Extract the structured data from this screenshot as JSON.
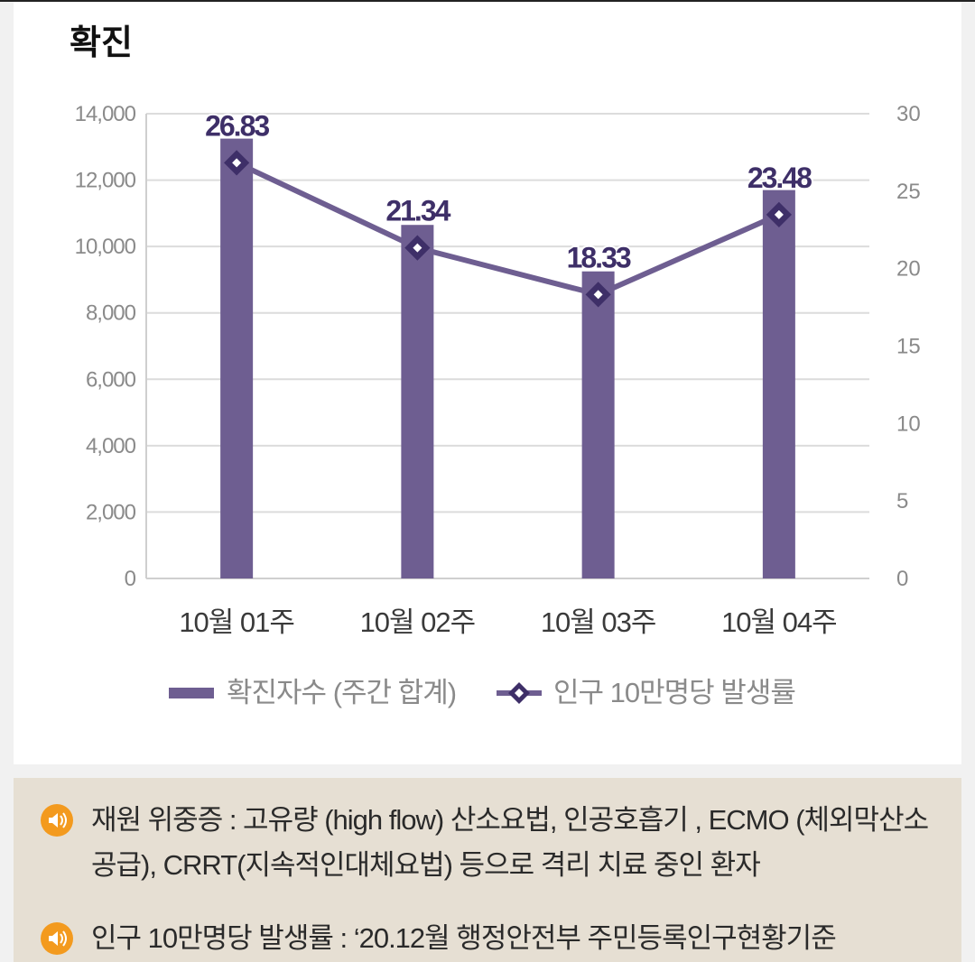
{
  "title": "확진",
  "chart_data": {
    "type": "bar",
    "categories": [
      "10월 01주",
      "10월 02주",
      "10월 03주",
      "10월 04주"
    ],
    "series": [
      {
        "name": "확진자수 (주간 합계)",
        "kind": "bar",
        "axis": "left",
        "values": [
          13250,
          10650,
          9250,
          11700
        ]
      },
      {
        "name": "인구 10만명당 발생률",
        "kind": "line",
        "axis": "right",
        "values": [
          26.83,
          21.34,
          18.33,
          23.48
        ]
      }
    ],
    "data_labels": [
      "26.83",
      "21.34",
      "18.33",
      "23.48"
    ],
    "ylim_left": [
      0,
      14000
    ],
    "ylim_right": [
      0,
      30
    ],
    "left_ticks": [
      "0",
      "2,000",
      "4,000",
      "6,000",
      "8,000",
      "10,000",
      "12,000",
      "14,000"
    ],
    "right_ticks": [
      "0",
      "5",
      "10",
      "15",
      "20",
      "25",
      "30"
    ],
    "grid": true,
    "legend_position": "bottom",
    "colors": {
      "bar": "#6e5e91",
      "line": "#6e5e91",
      "label": "#3e2f68",
      "grid": "#dcdcdc",
      "axis_text": "#8a8a8a"
    }
  },
  "notes": [
    {
      "icon": "speaker-icon",
      "text": "재원 위중증 : 고유량 (high flow) 산소요법, 인공호흡기 , ECMO (체외막산소공급), CRRT(지속적인대체요법) 등으로 격리 치료 중인 환자"
    },
    {
      "icon": "speaker-icon",
      "text": "인구 10만명당 발생률 : ‘20.12월 행정안전부 주민등록인구현황기준"
    }
  ],
  "colors": {
    "icon": "#f39a1e"
  }
}
